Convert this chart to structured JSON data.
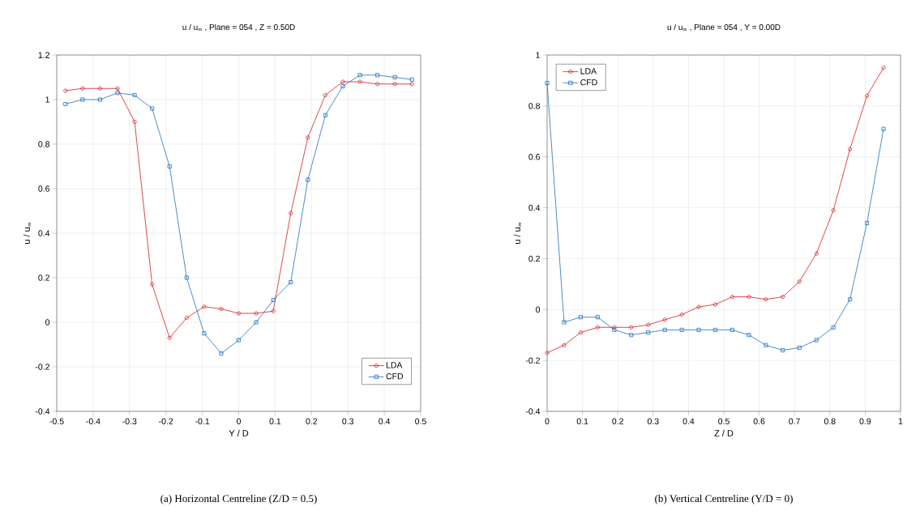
{
  "chart_data": [
    {
      "type": "line",
      "title": "u / u$_{∞}$ , Plane = 054 , Z = 0.50D",
      "xlabel": "Y / D",
      "ylabel": "u / u$_{∞}$",
      "annotations": [
        "(a) Horizontal Centreline (Z/D = 0.5)"
      ],
      "x": [
        -0.476,
        -0.429,
        -0.381,
        -0.333,
        -0.286,
        -0.238,
        -0.19,
        -0.143,
        -0.095,
        -0.048,
        0,
        0.048,
        0.095,
        0.143,
        0.19,
        0.238,
        0.286,
        0.333,
        0.381,
        0.429,
        0.476
      ],
      "series": [
        {
          "name": "LDA",
          "color": "#d7191c",
          "marker": "circle",
          "values": [
            1.04,
            1.05,
            1.05,
            1.05,
            0.9,
            0.17,
            -0.07,
            0.02,
            0.07,
            0.06,
            0.04,
            0.04,
            0.05,
            0.49,
            0.83,
            1.02,
            1.08,
            1.08,
            1.07,
            1.07,
            1.07
          ]
        },
        {
          "name": "CFD",
          "color": "#1f6fbf",
          "marker": "square",
          "values": [
            0.98,
            1.0,
            1.0,
            1.03,
            1.02,
            0.96,
            0.7,
            0.2,
            -0.05,
            -0.14,
            -0.08,
            0.0,
            0.1,
            0.18,
            0.64,
            0.93,
            1.06,
            1.11,
            1.11,
            1.1,
            1.09
          ]
        }
      ],
      "xlim": [
        -0.5,
        0.5
      ],
      "xticks": [
        -0.5,
        -0.4,
        -0.3,
        -0.2,
        -0.1,
        0,
        0.1,
        0.2,
        0.3,
        0.4,
        0.5
      ],
      "ylim": [
        -0.4,
        1.2
      ],
      "yticks": [
        -0.4,
        -0.2,
        0,
        0.2,
        0.4,
        0.6,
        0.8,
        1,
        1.2
      ],
      "grid": true,
      "legend": "bottom right",
      "line_style": "solid"
    },
    {
      "type": "line",
      "title": "u / u$_{∞}$ , Plane = 054 , Y = 0.00D",
      "xlabel": "Z / D",
      "ylabel": "u / u$_{∞}$",
      "annotations": [
        "(b) Vertical Centreline (Y/D = 0)"
      ],
      "x": [
        0,
        0.048,
        0.095,
        0.143,
        0.19,
        0.238,
        0.286,
        0.333,
        0.381,
        0.429,
        0.476,
        0.524,
        0.571,
        0.619,
        0.667,
        0.714,
        0.762,
        0.81,
        0.857,
        0.905,
        0.952
      ],
      "series": [
        {
          "name": "LDA",
          "color": "#d7191c",
          "marker": "circle",
          "values": [
            -0.17,
            -0.14,
            -0.09,
            -0.07,
            -0.07,
            -0.07,
            -0.06,
            -0.04,
            -0.02,
            0.01,
            0.02,
            0.05,
            0.05,
            0.04,
            0.05,
            0.11,
            0.22,
            0.39,
            0.63,
            0.84,
            0.95
          ]
        },
        {
          "name": "CFD",
          "color": "#1f6fbf",
          "marker": "square",
          "values": [
            0.89,
            -0.05,
            -0.03,
            -0.03,
            -0.08,
            -0.1,
            -0.09,
            -0.08,
            -0.08,
            -0.08,
            -0.08,
            -0.08,
            -0.1,
            -0.14,
            -0.16,
            -0.15,
            -0.12,
            -0.07,
            0.04,
            0.34,
            0.71
          ]
        }
      ],
      "xlim": [
        0,
        1
      ],
      "xticks": [
        0,
        0.1,
        0.2,
        0.3,
        0.4,
        0.5,
        0.6,
        0.7,
        0.8,
        0.9,
        1
      ],
      "ylim": [
        -0.4,
        1
      ],
      "yticks": [
        -0.4,
        -0.2,
        0,
        0.2,
        0.4,
        0.6,
        0.8,
        1
      ],
      "grid": true,
      "legend": "top left",
      "line_style": "solid"
    }
  ]
}
